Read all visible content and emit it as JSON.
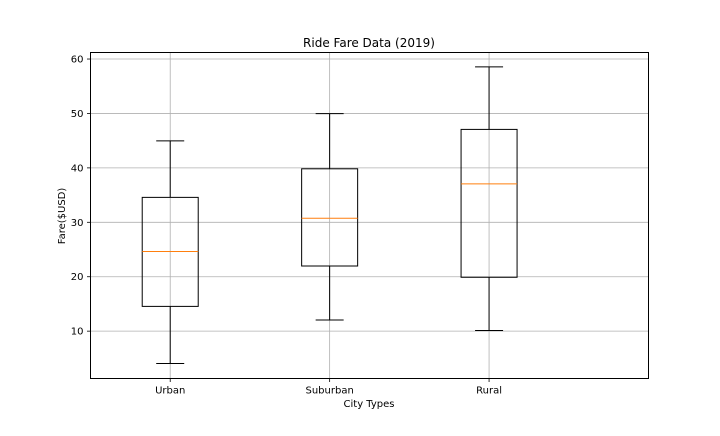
{
  "chart_data": {
    "type": "boxplot",
    "title": "Ride Fare Data (2019)",
    "xlabel": "City Types",
    "ylabel": "Fare($USD)",
    "ylim": [
      1.3,
      61.2
    ],
    "yticks": [
      10,
      20,
      30,
      40,
      50,
      60
    ],
    "grid": true,
    "categories": [
      "Urban",
      "Suburban",
      "Rural"
    ],
    "boxes": [
      {
        "category": "Urban",
        "whisker_low": 4.05,
        "q1": 14.55,
        "median": 24.64,
        "q3": 34.58,
        "whisker_high": 44.97
      },
      {
        "category": "Suburban",
        "whisker_low": 12.05,
        "q1": 21.97,
        "median": 30.75,
        "q3": 39.83,
        "whisker_high": 49.96
      },
      {
        "category": "Rural",
        "whisker_low": 10.11,
        "q1": 19.9,
        "median": 37.05,
        "q3": 47.07,
        "whisker_high": 58.55
      }
    ],
    "colors": {
      "box": "#000000",
      "median": "#ff7f0e",
      "grid": "#b0b0b0"
    }
  }
}
